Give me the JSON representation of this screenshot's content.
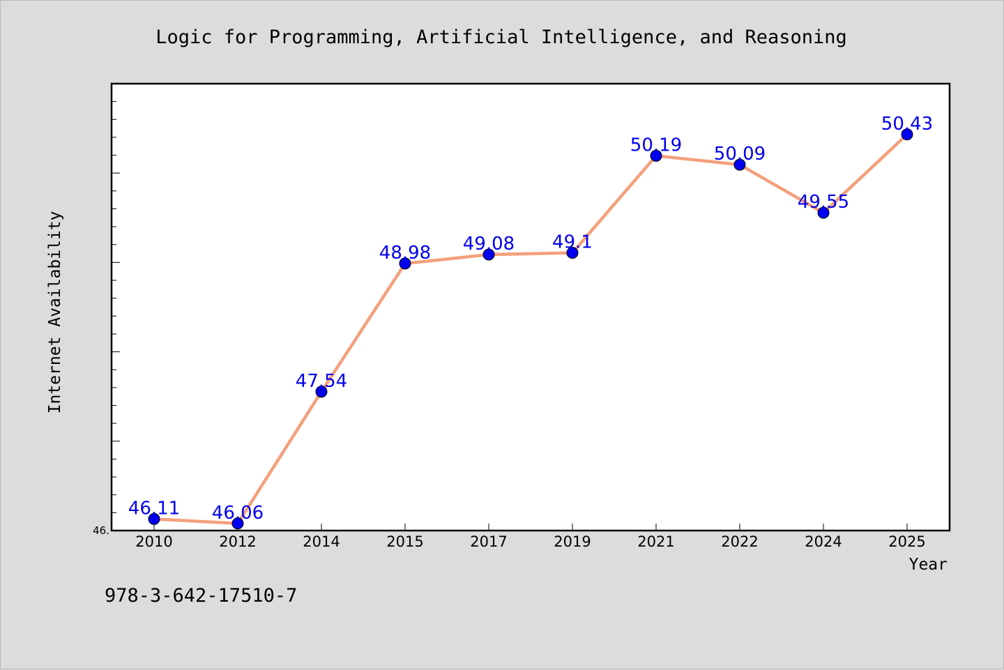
{
  "chart_data": {
    "type": "line",
    "title": "Logic for Programming, Artificial Intelligence, and Reasoning",
    "xlabel": "Year",
    "ylabel": "Internet Availability",
    "categories": [
      "2010",
      "2012",
      "2014",
      "2015",
      "2017",
      "2019",
      "2021",
      "2022",
      "2024",
      "2025"
    ],
    "series": [
      {
        "values": [
          46.11,
          46.06,
          47.54,
          48.98,
          49.08,
          49.1,
          50.19,
          50.09,
          49.55,
          50.43
        ],
        "labels": [
          "46.11",
          "46.06",
          "47.54",
          "48.98",
          "49.08",
          "49.1",
          "50.19",
          "50.09",
          "49.55",
          "50.43"
        ]
      }
    ],
    "ylim": [
      45.98,
      51.0
    ],
    "y_tick_labels": [
      {
        "value": 45.98,
        "text": "46."
      }
    ],
    "grid": false,
    "colors": {
      "line": "#f4a07c",
      "marker": "#0000ee",
      "label": "#0000ee",
      "plot_background": "#ffffff",
      "figure_background": "#dcdcdc"
    }
  },
  "footnote": "978-3-642-17510-7"
}
